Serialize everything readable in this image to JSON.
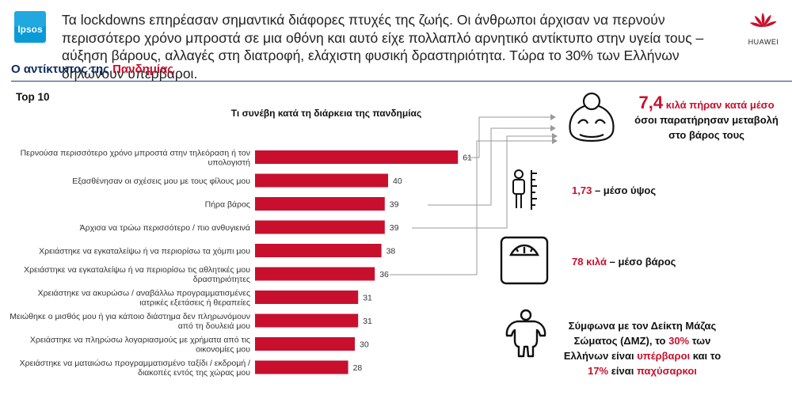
{
  "header": {
    "headline": "Τα lockdowns επηρέασαν σημαντικά διάφορες πτυχές της ζωής. Οι άνθρωποι άρχισαν να περνούν περισσότερο χρόνο μπροστά σε μια οθόνη και αυτό είχε πολλαπλό αρνητικό αντίκτυπο στην υγεία τους – αύξηση βάρους, αλλαγές στη διατροφή, ελάχιστη φυσική δραστηριότητα. Τώρα το 30% των Ελλήνων δηλώνουν υπέρβαροι.",
    "ipsos_logo_text": "Ipsos",
    "huawei_logo_text": "HUAWEI",
    "brand_red": "#c8102e"
  },
  "section": {
    "title_prefix": "Ο αντίκτυπος της",
    "title_highlight": "Πανδημίας",
    "subtitle": "Top 10"
  },
  "chart_data": {
    "type": "bar",
    "orientation": "horizontal",
    "title": "Τι συνέβη κατά τη διάρκεια της πανδημίας",
    "categories": [
      [
        "Περνούσα περισσότερο χρόνο μπροστά στην τηλεόραση ή τον",
        "υπολογιστή"
      ],
      [
        "Εξασθένησαν οι σχέσεις μου με τους φίλους μου"
      ],
      [
        "Πήρα βάρος"
      ],
      [
        "Άρχισα να τρώω περισσότερο / πιο ανθυγιεινά"
      ],
      [
        "Χρειάστηκε να εγκαταλείψω ή να περιορίσω τα χόμπι μου"
      ],
      [
        "Χρειάστηκε να εγκαταλείψω ή να περιορίσω τις αθλητικές μου",
        "δραστηριότητες"
      ],
      [
        "Χρειάστηκε να ακυρώσω / αναβάλλω προγραμματισμένες",
        "ιατρικές εξετάσεις ή θεραπείες"
      ],
      [
        "Μειώθηκε ο μισθός μου ή για κάποιο διάστημα δεν πληρωνόμουν",
        "από τη δουλειά μου"
      ],
      [
        "Χρειάστηκε να πληρώσω λογαριασμούς με χρήματα από τις",
        "οικονομίες μου"
      ],
      [
        "Χρειάστηκε να ματαιώσω προγραμματισμένο ταξίδι / εκδρομή /",
        "διακοπές εντός της χώρας μου"
      ]
    ],
    "values": [
      61,
      40,
      39,
      39,
      38,
      36,
      31,
      31,
      30,
      28
    ],
    "bar_color": "#c8102e",
    "grid": false,
    "legend": "none"
  },
  "info": {
    "weight_gain": {
      "value": "7,4",
      "text_line1": "κιλά πήραν κατά μέσο",
      "text_line2": "όσοι παρατήρησαν μεταβολή",
      "text_line3": "στο βάρος τους"
    },
    "height": {
      "value": "1,73",
      "label": "– μέσο ύψος"
    },
    "weight": {
      "value": "78 κιλά",
      "label": "– μέσο βάρος"
    },
    "bmi": {
      "line1": "Σύμφωνα με τον Δείκτη Μάζας",
      "line2_a": "Σώματος (ΔΜΖ), το ",
      "line2_b": "30%",
      "line2_c": " των",
      "line3_a": "Ελλήνων είναι ",
      "line3_b": "υπέρβαροι",
      "line3_c": " και το",
      "line4_a": "17%",
      "line4_b": " είναι ",
      "line4_c": "παχύσαρκοι"
    }
  },
  "icons": {
    "weight_gain_icon": "overweight-person-icon",
    "height_icon": "person-height-ruler-icon",
    "scale_icon": "bathroom-scale-icon",
    "bmi_icon": "overweight-body-icon"
  }
}
